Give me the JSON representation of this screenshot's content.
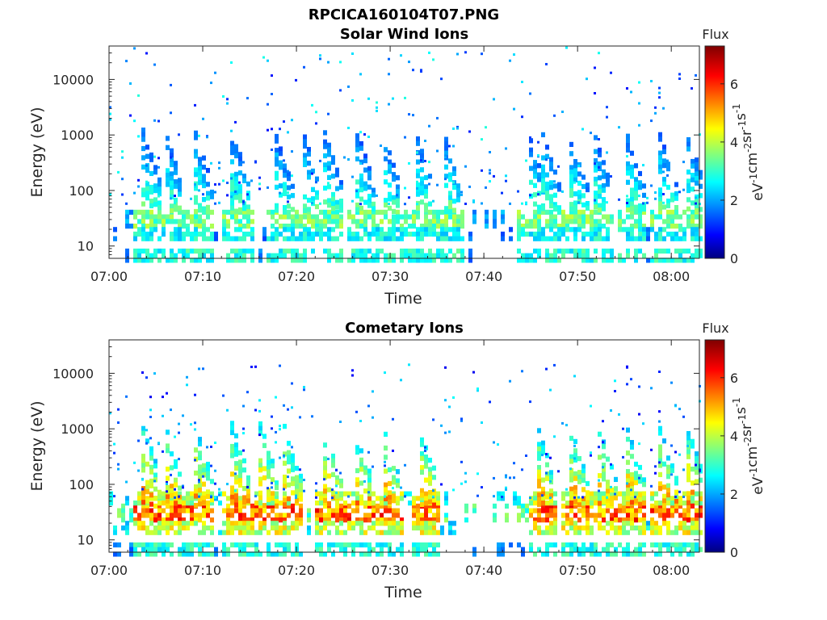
{
  "figure": {
    "title": "RPCICA160104T07.PNG"
  },
  "chart_data": [
    {
      "type": "heatmap",
      "title": "Solar Wind Ions",
      "xlabel": "Time",
      "ylabel": "Energy (eV)",
      "x_ticks": [
        "07:00",
        "07:10",
        "07:20",
        "07:30",
        "07:40",
        "07:50",
        "08:00"
      ],
      "x_range_minutes": [
        0,
        63
      ],
      "y_ticks": [
        "10",
        "100",
        "1000",
        "10000"
      ],
      "y_scale": "log",
      "y_range": [
        6,
        40000
      ],
      "colorbar": {
        "label": "Flux",
        "unit": "eV-1cm-2sr-1s-1",
        "ticks": [
          "0",
          "2",
          "4",
          "6"
        ],
        "range": [
          0,
          7.3
        ]
      },
      "sweeps_minutes": [
        4,
        6.3,
        9.5,
        13.5,
        18,
        21,
        23.3,
        26.8,
        29.5,
        33,
        36,
        45,
        46.5,
        49.5,
        52,
        55.5,
        59,
        62
      ],
      "bands": [
        {
          "ev_min": 22,
          "ev_max": 45,
          "level": 3.8
        },
        {
          "ev_min": 15,
          "ev_max": 22,
          "level": 3.0
        },
        {
          "ev_min": 6,
          "ev_max": 9,
          "level": 3.2
        }
      ],
      "scatter": {
        "ev_min": 60,
        "ev_max": 40000,
        "level_min": 1.0,
        "level_max": 3.0
      }
    },
    {
      "type": "heatmap",
      "title": "Cometary Ions",
      "xlabel": "Time",
      "ylabel": "Energy (eV)",
      "x_ticks": [
        "07:00",
        "07:10",
        "07:20",
        "07:30",
        "07:40",
        "07:50",
        "08:00"
      ],
      "x_range_minutes": [
        0,
        63
      ],
      "y_ticks": [
        "10",
        "100",
        "1000",
        "10000"
      ],
      "y_scale": "log",
      "y_range": [
        6,
        40000
      ],
      "colorbar": {
        "label": "Flux",
        "unit": "eV-1cm-2sr-1s-1",
        "ticks": [
          "0",
          "2",
          "4",
          "6"
        ],
        "range": [
          0,
          7.3
        ]
      },
      "sweeps_minutes": [
        4,
        6.3,
        9.5,
        13.5,
        16.5,
        19,
        23.3,
        26.5,
        29.5,
        33.5,
        46,
        49.5,
        52.5,
        55.5,
        59,
        62
      ],
      "bands": [
        {
          "ev_min": 22,
          "ev_max": 45,
          "level": 6.0
        },
        {
          "ev_min": 15,
          "ev_max": 22,
          "level": 4.6
        },
        {
          "ev_min": 45,
          "ev_max": 75,
          "level": 4.4
        },
        {
          "ev_min": 6,
          "ev_max": 9,
          "level": 3.2
        }
      ],
      "scatter": {
        "ev_min": 60,
        "ev_max": 15000,
        "level_min": 0.8,
        "level_max": 2.8
      }
    }
  ]
}
